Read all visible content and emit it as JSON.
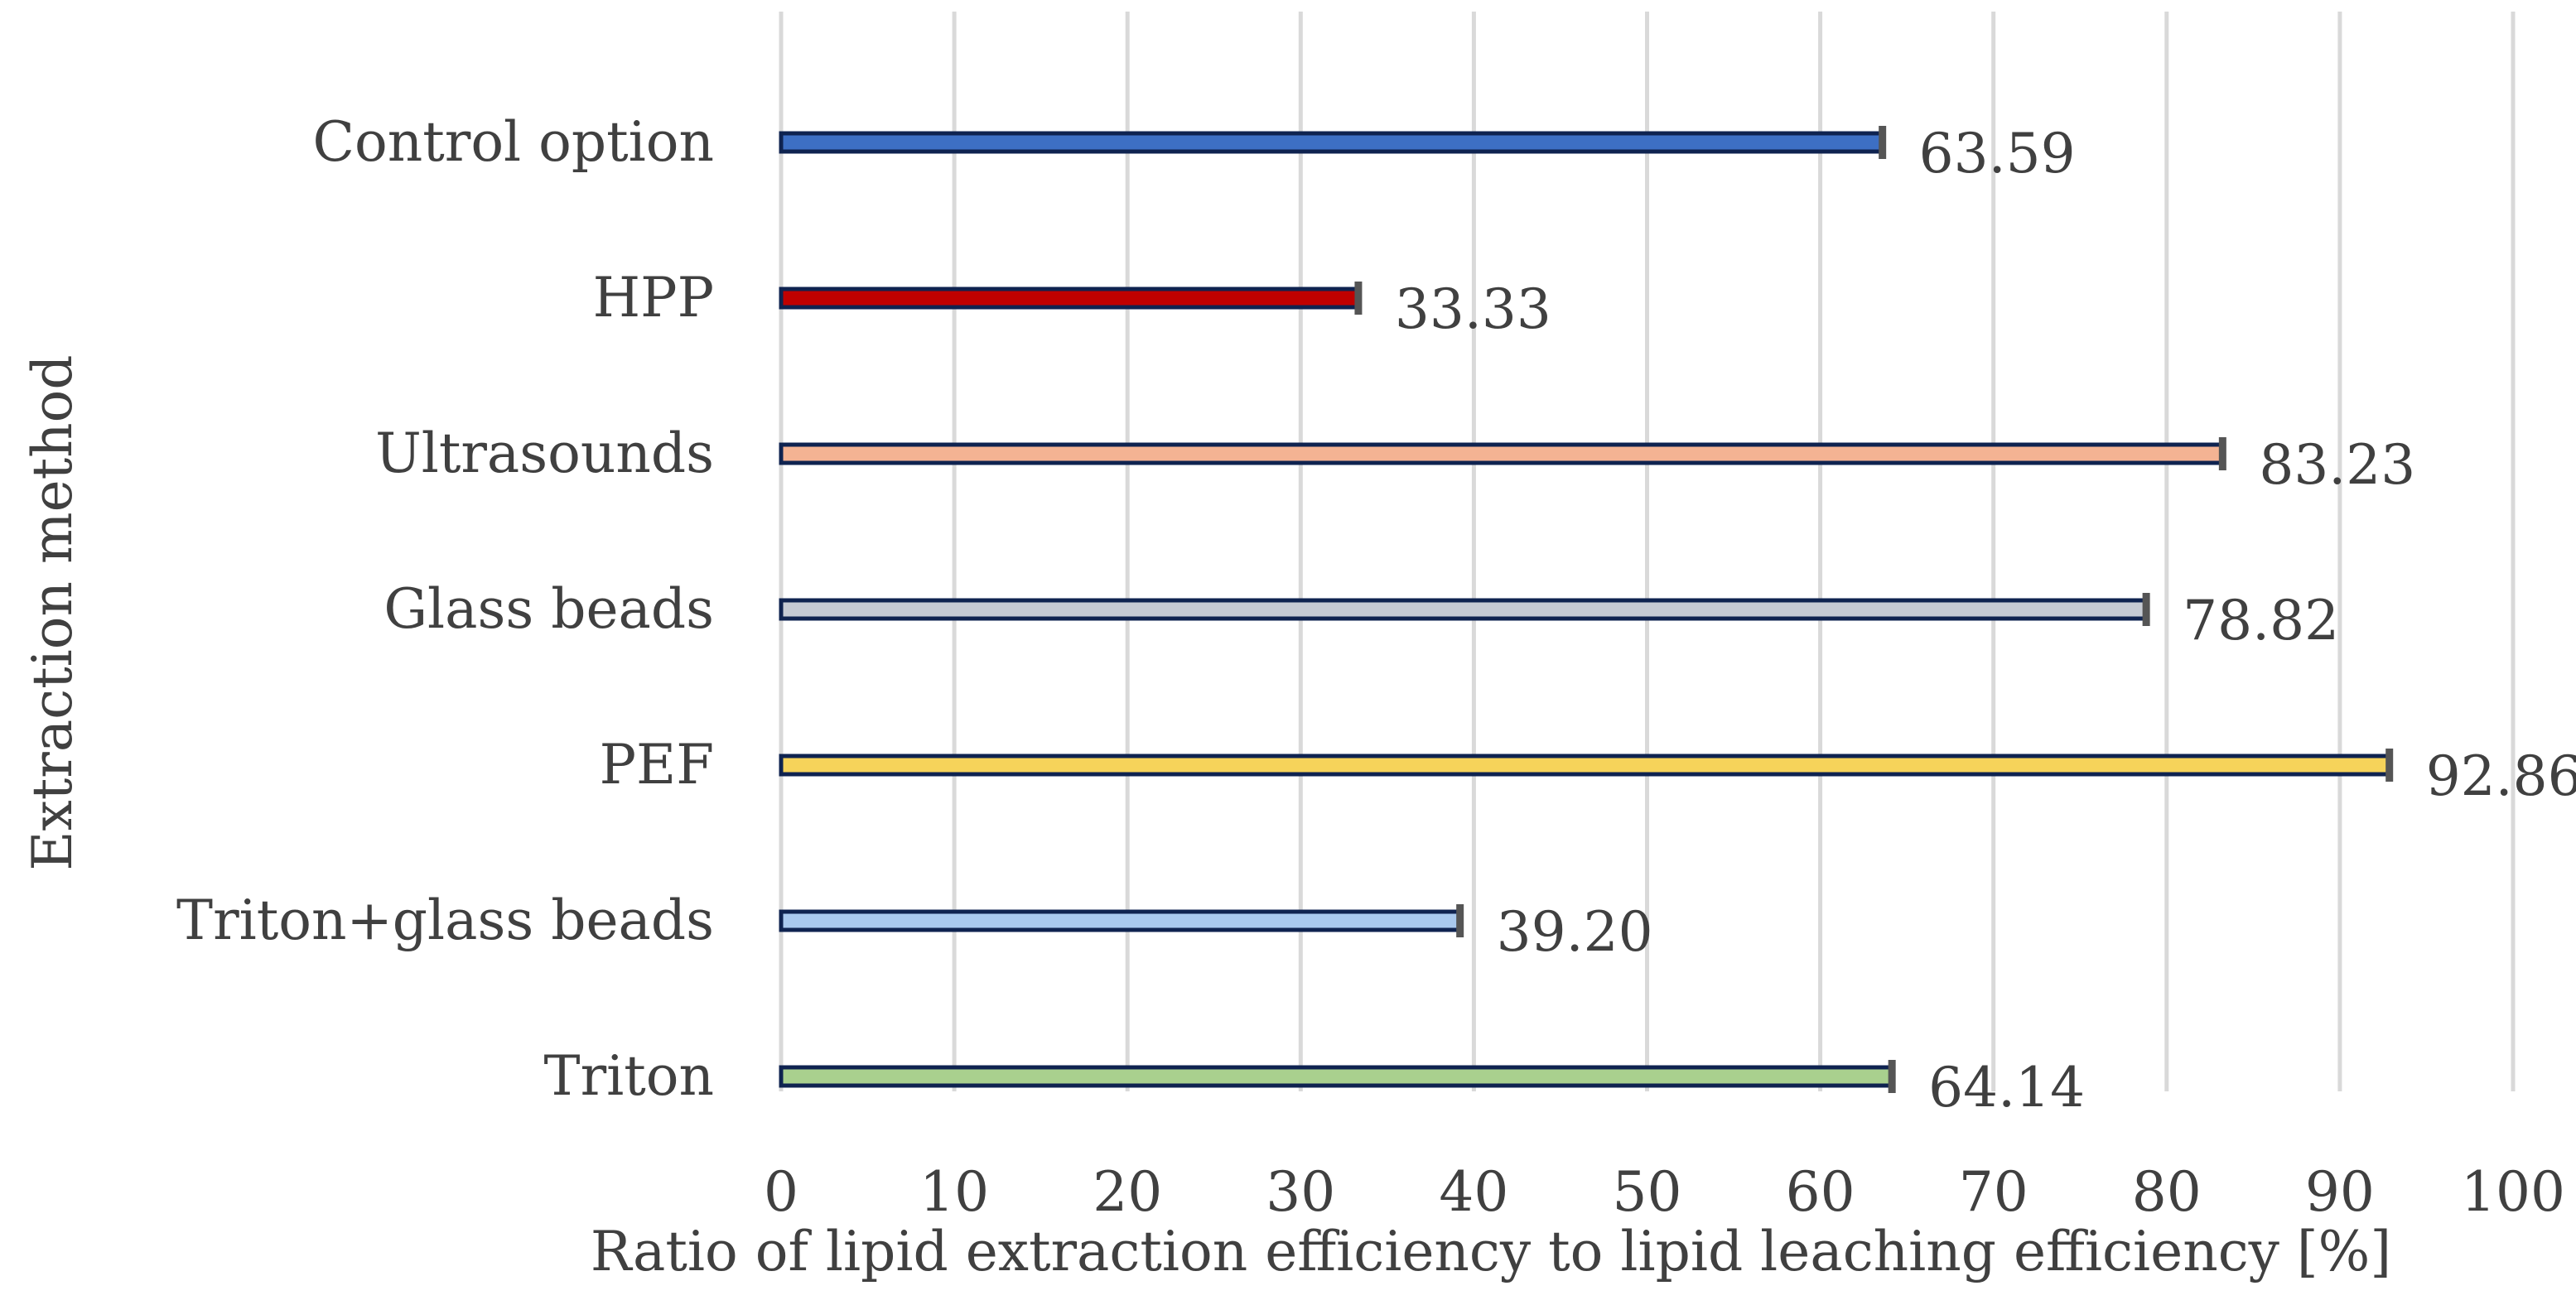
{
  "chart_data": {
    "type": "bar",
    "orientation": "horizontal",
    "title": "",
    "xlabel": "Ratio of lipid extraction efficiency to lipid leaching efficiency [%]",
    "ylabel": "Extraction method",
    "xlim": [
      0,
      100
    ],
    "xticks": [
      0,
      10,
      20,
      30,
      40,
      50,
      60,
      70,
      80,
      90,
      100
    ],
    "grid": "vertical",
    "legend": "none",
    "categories": [
      "Control option",
      "HPP",
      "Ultrasounds",
      "Glass beads",
      "PEF",
      "Triton+glass beads",
      "Triton"
    ],
    "values": [
      63.59,
      33.33,
      83.23,
      78.82,
      92.86,
      39.2,
      64.14
    ],
    "data_labels": [
      "63.59",
      "33.33",
      "83.23",
      "78.82",
      "92.86",
      "39.20",
      "64.14"
    ],
    "colors": [
      "#3d6fc4",
      "#c00000",
      "#f4b393",
      "#c6cbd4",
      "#f6d35a",
      "#a9c9ee",
      "#a9d08e"
    ],
    "bar_edge_color": "#0f2350",
    "error_bar_color": "#555555",
    "grid_color": "#d9d9d9",
    "text_color": "#404040"
  }
}
